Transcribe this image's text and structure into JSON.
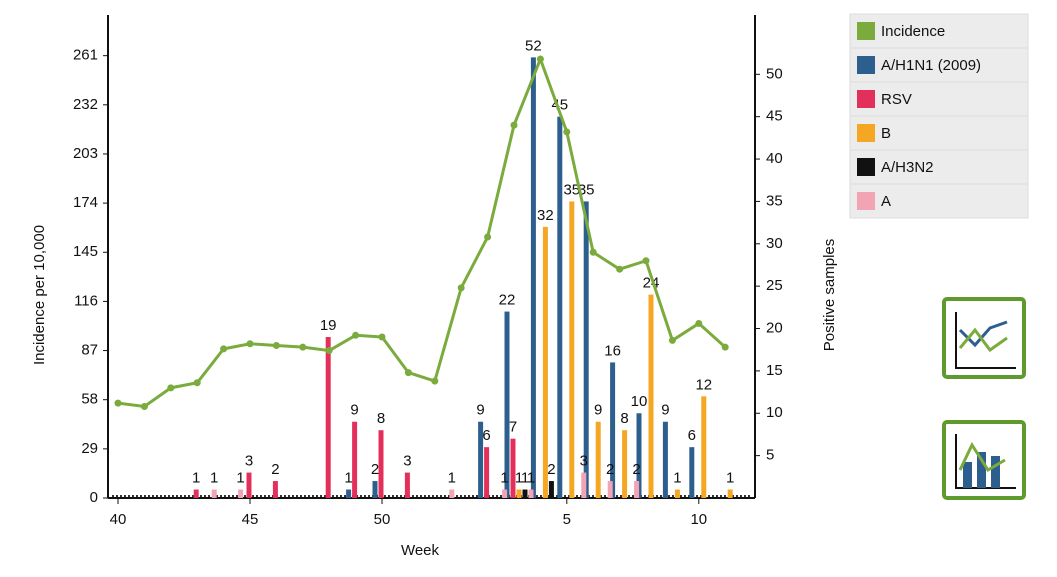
{
  "chart_data": {
    "type": "bar",
    "xlabel": "Week",
    "ylabel": "Incidence per 10,000",
    "y2label": "Positive samples",
    "categories": [
      40,
      null,
      null,
      null,
      null,
      45,
      null,
      null,
      null,
      null,
      50,
      null,
      null,
      null,
      null,
      null,
      null,
      5,
      null,
      null,
      null,
      null,
      10,
      null
    ],
    "ylim": [
      0,
      285
    ],
    "yticks": [
      0,
      29,
      58,
      87,
      116,
      145,
      174,
      203,
      232,
      261
    ],
    "y2lim": [
      0,
      57
    ],
    "y2ticks": [
      5,
      10,
      15,
      20,
      25,
      30,
      35,
      40,
      45,
      50
    ],
    "series": [
      {
        "name": "Incidence",
        "type": "line",
        "color": "#7aab3c",
        "values": [
          56,
          54,
          65,
          68,
          88,
          91,
          90,
          89,
          87,
          96,
          95,
          74,
          69,
          124,
          154,
          220,
          259,
          216,
          145,
          135,
          140,
          93,
          103,
          89
        ]
      },
      {
        "name": "A/H1N1 (2009)",
        "axis": "y2",
        "color": "#2d5f8e",
        "values": [
          null,
          null,
          null,
          null,
          null,
          null,
          null,
          null,
          null,
          1,
          2,
          null,
          null,
          null,
          9,
          22,
          52,
          45,
          35,
          16,
          10,
          9,
          6,
          null
        ]
      },
      {
        "name": "RSV",
        "axis": "y2",
        "color": "#e3305b",
        "values": [
          null,
          null,
          null,
          1,
          null,
          3,
          2,
          null,
          19,
          9,
          8,
          3,
          null,
          null,
          6,
          7,
          null,
          null,
          null,
          null,
          null,
          null,
          null,
          null
        ]
      },
      {
        "name": "B",
        "axis": "y2",
        "color": "#f5a623",
        "values": [
          null,
          null,
          null,
          null,
          null,
          null,
          null,
          null,
          null,
          null,
          null,
          null,
          null,
          null,
          null,
          1,
          32,
          35,
          9,
          8,
          24,
          1,
          12,
          1
        ]
      },
      {
        "name": "A/H3N2",
        "axis": "y2",
        "color": "#111111",
        "values": [
          null,
          null,
          null,
          null,
          null,
          null,
          null,
          null,
          null,
          null,
          null,
          null,
          null,
          null,
          null,
          1,
          2,
          null,
          null,
          null,
          null,
          null,
          null,
          null
        ]
      },
      {
        "name": "A",
        "axis": "y2",
        "color": "#f2a3b4",
        "values": [
          null,
          null,
          null,
          1,
          1,
          null,
          null,
          null,
          null,
          null,
          null,
          null,
          1,
          null,
          1,
          1,
          null,
          3,
          2,
          2,
          null,
          null,
          null,
          null
        ]
      }
    ]
  }
}
